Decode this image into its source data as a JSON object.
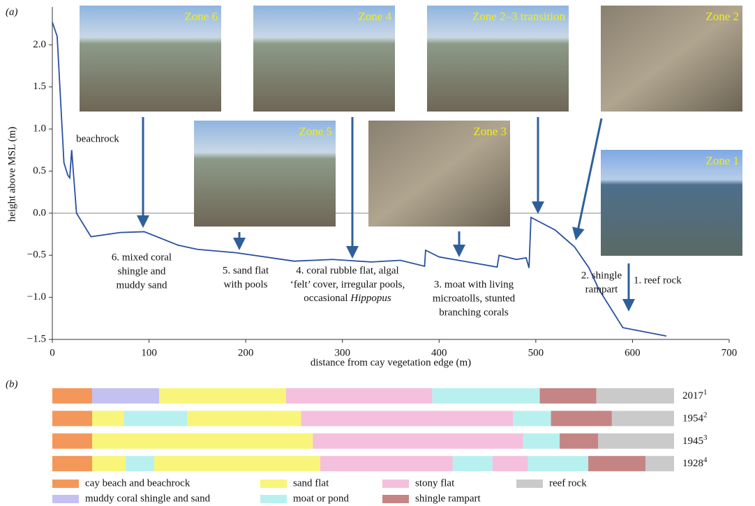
{
  "chart_data": [
    {
      "type": "line",
      "panel_label": "(a)",
      "x_label": "distance from cay vegetation edge (m)",
      "y_label": "height above MSL (m)",
      "xlim": [
        0,
        700
      ],
      "ylim": [
        -1.5,
        2.45
      ],
      "xticks": [
        0,
        100,
        200,
        300,
        400,
        500,
        600,
        700
      ],
      "yticks": [
        {
          "value": -1.5,
          "label": "−1.5"
        },
        {
          "value": -1,
          "label": "−1.0"
        },
        {
          "value": -0.5,
          "label": "−0.5"
        },
        {
          "value": 0,
          "label": "0.0"
        },
        0.5,
        {
          "value": 1,
          "label": "1.0"
        },
        1.5,
        {
          "value": 2,
          "label": "2.0"
        }
      ],
      "zero_line": true,
      "x": [
        0,
        5,
        12,
        16,
        18,
        20,
        22,
        25,
        40,
        70,
        95,
        130,
        150,
        190,
        250,
        290,
        330,
        360,
        385,
        386,
        400,
        430,
        460,
        462,
        480,
        490,
        493,
        495,
        520,
        540,
        555,
        565,
        590,
        635
      ],
      "series": [
        {
          "color": "#2a4fa0",
          "values": [
            2.27,
            2.1,
            0.6,
            0.45,
            0.42,
            0.75,
            0.45,
            0,
            -0.28,
            -0.23,
            -0.22,
            -0.38,
            -0.43,
            -0.47,
            -0.57,
            -0.55,
            -0.58,
            -0.56,
            -0.63,
            -0.44,
            -0.52,
            -0.58,
            -0.64,
            -0.5,
            -0.55,
            -0.53,
            -0.65,
            -0.05,
            -0.2,
            -0.4,
            -0.65,
            -0.9,
            -1.36,
            -1.46
          ]
        }
      ],
      "photos": [
        {
          "label": "Zone 6"
        },
        {
          "label": "Zone 4"
        },
        {
          "label": "Zone 2–3 transition"
        },
        {
          "label": "Zone 2"
        },
        {
          "label": "Zone 5"
        },
        {
          "label": "Zone 3"
        },
        {
          "label": "Zone 1"
        }
      ],
      "annotations": [
        {
          "lines": [
            "beachrock"
          ]
        },
        {
          "lines": [
            "6. mixed coral",
            "shingle and",
            "muddy sand"
          ]
        },
        {
          "lines": [
            "5. sand flat",
            "with pools"
          ]
        },
        {
          "lines": [
            "4. coral rubble flat, algal",
            "‘felt’ cover, irregular pools,",
            [
              "occasional ",
              "Hippopus"
            ]
          ]
        },
        {
          "lines": [
            "3. moat with living",
            "microatolls, stunted",
            "branching corals"
          ]
        },
        {
          "lines": [
            "2. shingle",
            "rampart"
          ]
        },
        {
          "lines": [
            "1. reef rock"
          ]
        }
      ]
    },
    {
      "type": "stacked-bar",
      "panel_label": "(b)",
      "xlim": [
        0,
        100
      ],
      "classes": [
        {
          "name": "cay beach and beachrock",
          "color": "#f4975a"
        },
        {
          "name": "muddy coral shingle and sand",
          "color": "#c4c0f0"
        },
        {
          "name": "sand flat",
          "color": "#f8f57a"
        },
        {
          "name": "moat or pond",
          "color": "#b8f0ef"
        },
        {
          "name": "stony flat",
          "color": "#f4c0dd"
        },
        {
          "name": "shingle rampart",
          "color": "#c58585"
        },
        {
          "name": "reef rock",
          "color": "#cacaca"
        }
      ],
      "rows": [
        {
          "label": "2017",
          "sup": "1",
          "segments": [
            {
              "class": 0,
              "value": 6.4
            },
            {
              "class": 1,
              "value": 10.8
            },
            {
              "class": 2,
              "value": 20.4
            },
            {
              "class": 4,
              "value": 23.5
            },
            {
              "class": 3,
              "value": 17.3
            },
            {
              "class": 5,
              "value": 9.1
            },
            {
              "class": 6,
              "value": 12.5
            }
          ]
        },
        {
          "label": "1954",
          "sup": "2",
          "segments": [
            {
              "class": 0,
              "value": 6.4
            },
            {
              "class": 2,
              "value": 5.1
            },
            {
              "class": 3,
              "value": 10.2
            },
            {
              "class": 2,
              "value": 18.3
            },
            {
              "class": 4,
              "value": 34.1
            },
            {
              "class": 3,
              "value": 6.1
            },
            {
              "class": 5,
              "value": 9.8
            },
            {
              "class": 6,
              "value": 10
            }
          ]
        },
        {
          "label": "1945",
          "sup": "3",
          "segments": [
            {
              "class": 0,
              "value": 6.4
            },
            {
              "class": 2,
              "value": 35.5
            },
            {
              "class": 4,
              "value": 33.8
            },
            {
              "class": 3,
              "value": 5.9
            },
            {
              "class": 5,
              "value": 6.2
            },
            {
              "class": 6,
              "value": 12.2
            }
          ]
        },
        {
          "label": "1928",
          "sup": "4",
          "segments": [
            {
              "class": 0,
              "value": 6.4
            },
            {
              "class": 2,
              "value": 5.4
            },
            {
              "class": 3,
              "value": 4.6
            },
            {
              "class": 2,
              "value": 26.7
            },
            {
              "class": 4,
              "value": 21.3
            },
            {
              "class": 3,
              "value": 6.4
            },
            {
              "class": 4,
              "value": 5.7
            },
            {
              "class": 3,
              "value": 9.7
            },
            {
              "class": 5,
              "value": 9.2
            },
            {
              "class": 6,
              "value": 4.6
            }
          ]
        }
      ]
    }
  ]
}
